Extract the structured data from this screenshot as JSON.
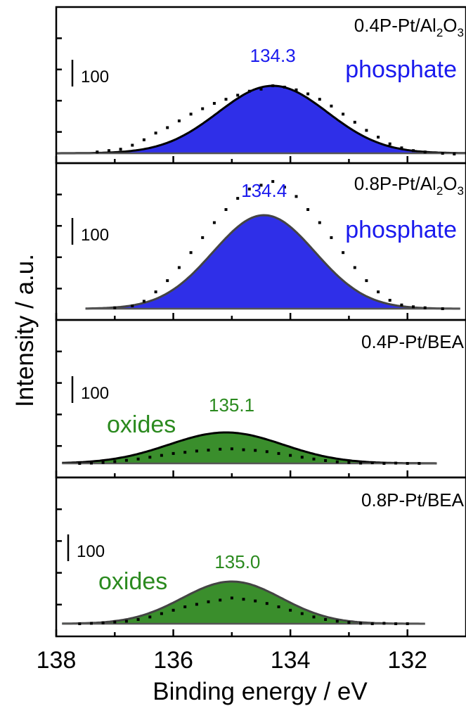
{
  "chart_data": {
    "type": "area",
    "xlabel": "Binding energy / eV",
    "ylabel": "Intensity / a.u.",
    "xlim": [
      138,
      131
    ],
    "x_ticks": [
      "138",
      "136",
      "134",
      "132"
    ],
    "x_tick_values": [
      138,
      136,
      134,
      132
    ],
    "panels": [
      {
        "sample_prefix": "0.4P-Pt/Al",
        "sample_sub1": "2",
        "sample_mid": "O",
        "sample_sub2": "3",
        "species": "phosphate",
        "peak_label": "134.3",
        "scale_bar_label": "100",
        "fill_color": "#2f2fe8",
        "label_color": "#1a1aee",
        "center": 134.3,
        "fwhm": 2.2,
        "height": 96,
        "x_range": [
          138,
          131
        ],
        "points": [
          [
            137.3,
            2
          ],
          [
            137.1,
            4
          ],
          [
            136.9,
            6
          ],
          [
            136.7,
            12
          ],
          [
            136.5,
            20
          ],
          [
            136.3,
            30
          ],
          [
            136.1,
            38
          ],
          [
            135.9,
            48
          ],
          [
            135.7,
            58
          ],
          [
            135.5,
            66
          ],
          [
            135.3,
            74
          ],
          [
            135.1,
            80
          ],
          [
            134.9,
            86
          ],
          [
            134.7,
            92
          ],
          [
            134.5,
            95
          ],
          [
            134.3,
            100
          ],
          [
            134.1,
            98
          ],
          [
            133.9,
            94
          ],
          [
            133.7,
            88
          ],
          [
            133.5,
            80
          ],
          [
            133.3,
            70
          ],
          [
            133.1,
            58
          ],
          [
            132.9,
            46
          ],
          [
            132.7,
            34
          ],
          [
            132.5,
            24
          ],
          [
            132.3,
            14
          ],
          [
            132.1,
            8
          ],
          [
            131.9,
            4
          ],
          [
            131.7,
            2
          ],
          [
            131.4,
            0
          ],
          [
            131.2,
            -1
          ]
        ]
      },
      {
        "sample_prefix": "0.8P-Pt/Al",
        "sample_sub1": "2",
        "sample_mid": "O",
        "sample_sub2": "3",
        "species": "phosphate",
        "peak_label": "134.4",
        "scale_bar_label": "100",
        "fill_color": "#2f2fe8",
        "label_color": "#1a1aee",
        "center": 134.45,
        "fwhm": 2.05,
        "height": 133,
        "x_range": [
          137.5,
          131.1
        ],
        "points": [
          [
            137.0,
            1
          ],
          [
            136.7,
            3
          ],
          [
            136.5,
            8
          ],
          [
            136.3,
            18
          ],
          [
            136.1,
            30
          ],
          [
            135.9,
            44
          ],
          [
            135.7,
            60
          ],
          [
            135.5,
            76
          ],
          [
            135.3,
            92
          ],
          [
            135.1,
            106
          ],
          [
            134.9,
            118
          ],
          [
            134.7,
            128
          ],
          [
            134.5,
            132
          ],
          [
            134.3,
            136
          ],
          [
            134.1,
            130
          ],
          [
            133.9,
            120
          ],
          [
            133.7,
            106
          ],
          [
            133.5,
            92
          ],
          [
            133.3,
            76
          ],
          [
            133.1,
            60
          ],
          [
            132.9,
            44
          ],
          [
            132.7,
            30
          ],
          [
            132.5,
            18
          ],
          [
            132.3,
            9
          ],
          [
            132.1,
            4
          ],
          [
            131.9,
            2
          ],
          [
            131.7,
            1
          ],
          [
            131.4,
            0
          ]
        ]
      },
      {
        "sample_prefix": "0.4P-Pt/BEA",
        "sample_sub1": "",
        "sample_mid": "",
        "sample_sub2": "",
        "species": "oxides",
        "peak_label": "135.1",
        "scale_bar_label": "100",
        "fill_color": "#3a8e2c",
        "label_color": "#2b8a1f",
        "center": 135.1,
        "fwhm": 2.3,
        "height": 44,
        "x_range": [
          137.9,
          131.5
        ],
        "points": [
          [
            137.6,
            0
          ],
          [
            137.4,
            1
          ],
          [
            137.2,
            3
          ],
          [
            137.0,
            6
          ],
          [
            136.8,
            10
          ],
          [
            136.6,
            14
          ],
          [
            136.4,
            20
          ],
          [
            136.2,
            26
          ],
          [
            136.0,
            32
          ],
          [
            135.8,
            36
          ],
          [
            135.6,
            40
          ],
          [
            135.4,
            43
          ],
          [
            135.2,
            46
          ],
          [
            135.0,
            47
          ],
          [
            134.8,
            44
          ],
          [
            134.6,
            42
          ],
          [
            134.4,
            38
          ],
          [
            134.2,
            32
          ],
          [
            134.0,
            26
          ],
          [
            133.8,
            20
          ],
          [
            133.6,
            14
          ],
          [
            133.4,
            9
          ],
          [
            133.2,
            5
          ],
          [
            133.0,
            3
          ],
          [
            132.8,
            1
          ],
          [
            132.6,
            2
          ],
          [
            132.4,
            0
          ],
          [
            132.2,
            1
          ],
          [
            132.0,
            0
          ],
          [
            131.8,
            0
          ]
        ]
      },
      {
        "sample_prefix": "0.8P-Pt/BEA",
        "sample_sub1": "",
        "sample_mid": "",
        "sample_sub2": "",
        "species": "oxides",
        "peak_label": "135.0",
        "scale_bar_label": "100",
        "fill_color": "#3a8e2c",
        "label_color": "#2b8a1f",
        "center": 135.0,
        "fwhm": 2.0,
        "height": 60,
        "x_range": [
          137.9,
          131.7
        ],
        "points": [
          [
            137.6,
            0
          ],
          [
            137.4,
            1
          ],
          [
            137.2,
            2
          ],
          [
            137.0,
            4
          ],
          [
            136.8,
            6
          ],
          [
            136.6,
            10
          ],
          [
            136.4,
            16
          ],
          [
            136.2,
            24
          ],
          [
            136.0,
            32
          ],
          [
            135.8,
            40
          ],
          [
            135.6,
            46
          ],
          [
            135.4,
            52
          ],
          [
            135.2,
            56
          ],
          [
            135.0,
            61
          ],
          [
            134.8,
            58
          ],
          [
            134.6,
            54
          ],
          [
            134.4,
            48
          ],
          [
            134.2,
            40
          ],
          [
            134.0,
            32
          ],
          [
            133.8,
            24
          ],
          [
            133.6,
            16
          ],
          [
            133.4,
            10
          ],
          [
            133.2,
            6
          ],
          [
            133.0,
            3
          ],
          [
            132.8,
            1
          ],
          [
            132.6,
            0
          ],
          [
            132.4,
            1
          ],
          [
            132.2,
            0
          ],
          [
            132.0,
            0
          ]
        ]
      }
    ]
  }
}
